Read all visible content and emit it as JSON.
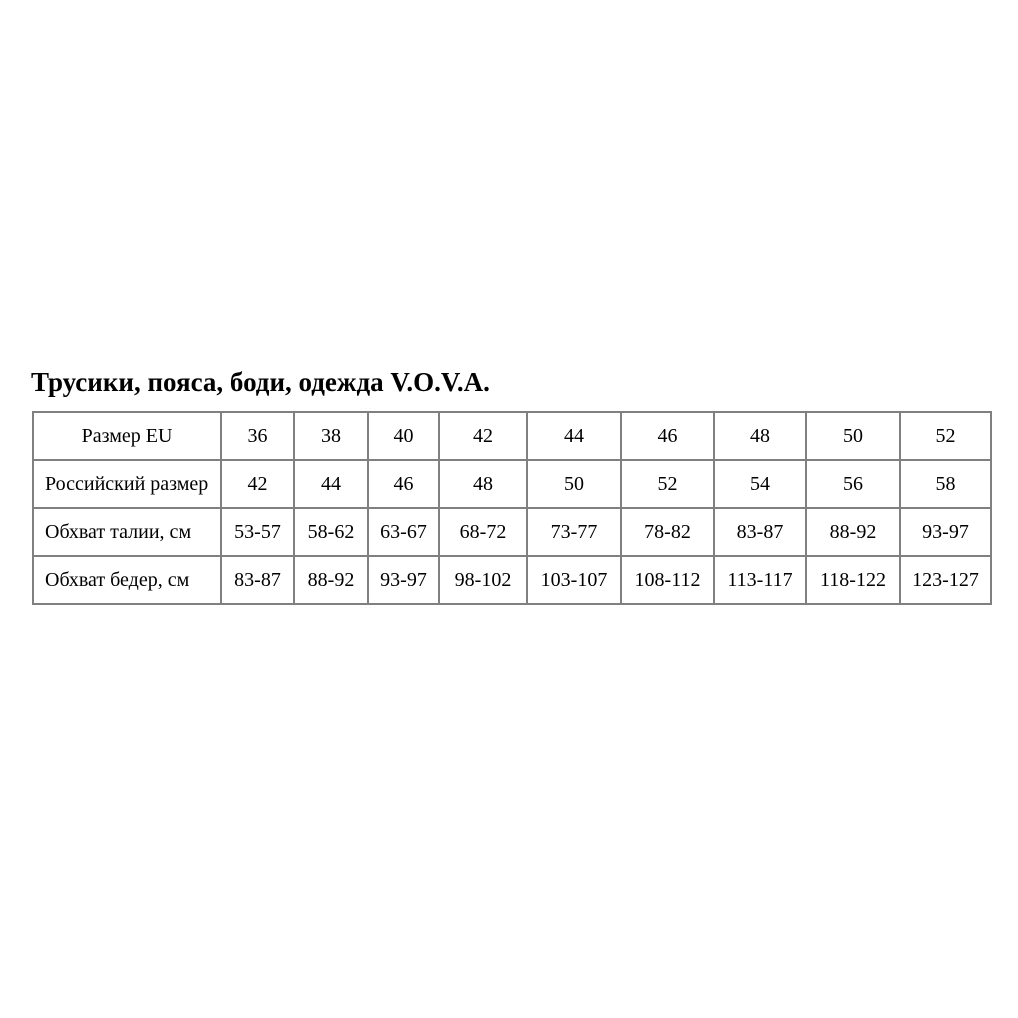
{
  "page": {
    "title": "Трусики, пояса, боди, одежда V.O.V.A."
  },
  "size_table": {
    "rows": [
      {
        "header": "Размер EU",
        "values": [
          "36",
          "38",
          "40",
          "42",
          "44",
          "46",
          "48",
          "50",
          "52"
        ]
      },
      {
        "header": "Российский размер",
        "values": [
          "42",
          "44",
          "46",
          "48",
          "50",
          "52",
          "54",
          "56",
          "58"
        ]
      },
      {
        "header": "Обхват талии, см",
        "values": [
          "53-57",
          "58-62",
          "63-67",
          "68-72",
          "73-77",
          "78-82",
          "83-87",
          "88-92",
          "93-97"
        ]
      },
      {
        "header": "Обхват бедер, см",
        "values": [
          "83-87",
          "88-92",
          "93-97",
          "98-102",
          "103-107",
          "108-112",
          "113-117",
          "118-122",
          "123-127"
        ]
      }
    ]
  },
  "colors": {
    "background": "#ffffff",
    "text": "#000000",
    "table_border": "#808080"
  }
}
